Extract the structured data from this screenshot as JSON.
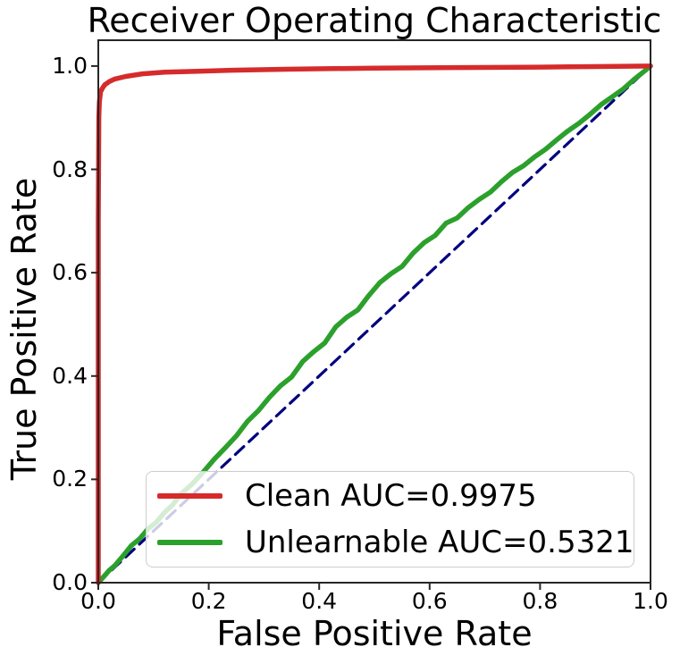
{
  "title": "Receiver Operating Characteristic",
  "axes": {
    "xlabel": "False Positive Rate",
    "ylabel": "True Positive Rate"
  },
  "legend": {
    "items": [
      {
        "label": "Clean AUC=0.9975",
        "color": "#d62b2b"
      },
      {
        "label": "Unlearnable AUC=0.5321",
        "color": "#2ca02c"
      }
    ]
  },
  "colors": {
    "clean_curve": "#d62b2b",
    "unlearnable_curve": "#2ca02c",
    "chance_line": "#000080",
    "spine": "#262626"
  },
  "chart_data": {
    "type": "line",
    "title": "Receiver Operating Characteristic",
    "xlabel": "False Positive Rate",
    "ylabel": "True Positive Rate",
    "xlim": [
      0.0,
      1.0
    ],
    "ylim": [
      0.0,
      1.05
    ],
    "x_ticks": {
      "values": [
        0.0,
        0.2,
        0.4,
        0.6,
        0.8,
        1.0
      ],
      "labels": [
        "0.0",
        "0.2",
        "0.4",
        "0.6",
        "0.8",
        "1.0"
      ]
    },
    "y_ticks": {
      "values": [
        0.0,
        0.2,
        0.4,
        0.6,
        0.8,
        1.0
      ],
      "labels": [
        "0.0",
        "0.2",
        "0.4",
        "0.6",
        "0.8",
        "1.0"
      ]
    },
    "grid": false,
    "legend_position": "lower-center-left",
    "series": [
      {
        "name": "chance-diagonal",
        "color": "#000080",
        "width": 3.2,
        "dash": "13 8",
        "auc": 0.5,
        "points": [
          [
            0,
            0
          ],
          [
            1,
            1
          ]
        ]
      },
      {
        "name": "Unlearnable AUC=0.5321",
        "color": "#2ca02c",
        "width": 5.5,
        "dash": null,
        "auc": 0.5321,
        "points": [
          [
            0,
            0
          ],
          [
            0.01,
            0.012
          ],
          [
            0.02,
            0.024
          ],
          [
            0.03,
            0.033
          ],
          [
            0.045,
            0.052
          ],
          [
            0.06,
            0.072
          ],
          [
            0.075,
            0.085
          ],
          [
            0.09,
            0.104
          ],
          [
            0.105,
            0.117
          ],
          [
            0.12,
            0.136
          ],
          [
            0.135,
            0.151
          ],
          [
            0.15,
            0.172
          ],
          [
            0.17,
            0.191
          ],
          [
            0.19,
            0.214
          ],
          [
            0.21,
            0.239
          ],
          [
            0.23,
            0.261
          ],
          [
            0.25,
            0.284
          ],
          [
            0.27,
            0.312
          ],
          [
            0.29,
            0.333
          ],
          [
            0.31,
            0.359
          ],
          [
            0.33,
            0.381
          ],
          [
            0.35,
            0.398
          ],
          [
            0.37,
            0.428
          ],
          [
            0.39,
            0.447
          ],
          [
            0.41,
            0.464
          ],
          [
            0.43,
            0.495
          ],
          [
            0.45,
            0.514
          ],
          [
            0.47,
            0.528
          ],
          [
            0.49,
            0.556
          ],
          [
            0.51,
            0.581
          ],
          [
            0.53,
            0.598
          ],
          [
            0.55,
            0.612
          ],
          [
            0.57,
            0.638
          ],
          [
            0.59,
            0.658
          ],
          [
            0.61,
            0.672
          ],
          [
            0.63,
            0.696
          ],
          [
            0.65,
            0.706
          ],
          [
            0.67,
            0.726
          ],
          [
            0.69,
            0.742
          ],
          [
            0.71,
            0.756
          ],
          [
            0.73,
            0.776
          ],
          [
            0.75,
            0.794
          ],
          [
            0.77,
            0.807
          ],
          [
            0.79,
            0.824
          ],
          [
            0.81,
            0.839
          ],
          [
            0.83,
            0.857
          ],
          [
            0.85,
            0.874
          ],
          [
            0.87,
            0.889
          ],
          [
            0.89,
            0.906
          ],
          [
            0.91,
            0.925
          ],
          [
            0.93,
            0.94
          ],
          [
            0.95,
            0.955
          ],
          [
            0.97,
            0.974
          ],
          [
            0.99,
            0.991
          ],
          [
            1,
            1
          ]
        ]
      },
      {
        "name": "Clean AUC=0.9975",
        "color": "#d62b2b",
        "width": 5.5,
        "dash": null,
        "auc": 0.9975,
        "points": [
          [
            0,
            0
          ],
          [
            0,
            0.7
          ],
          [
            0.001,
            0.9
          ],
          [
            0.002,
            0.93
          ],
          [
            0.004,
            0.95
          ],
          [
            0.008,
            0.958
          ],
          [
            0.012,
            0.964
          ],
          [
            0.02,
            0.97
          ],
          [
            0.03,
            0.975
          ],
          [
            0.05,
            0.98
          ],
          [
            0.08,
            0.985
          ],
          [
            0.12,
            0.988
          ],
          [
            0.18,
            0.99
          ],
          [
            0.25,
            0.992
          ],
          [
            0.35,
            0.994
          ],
          [
            0.5,
            0.996
          ],
          [
            0.65,
            0.997
          ],
          [
            0.8,
            0.998
          ],
          [
            0.9,
            0.999
          ],
          [
            1,
            1
          ]
        ]
      }
    ]
  }
}
